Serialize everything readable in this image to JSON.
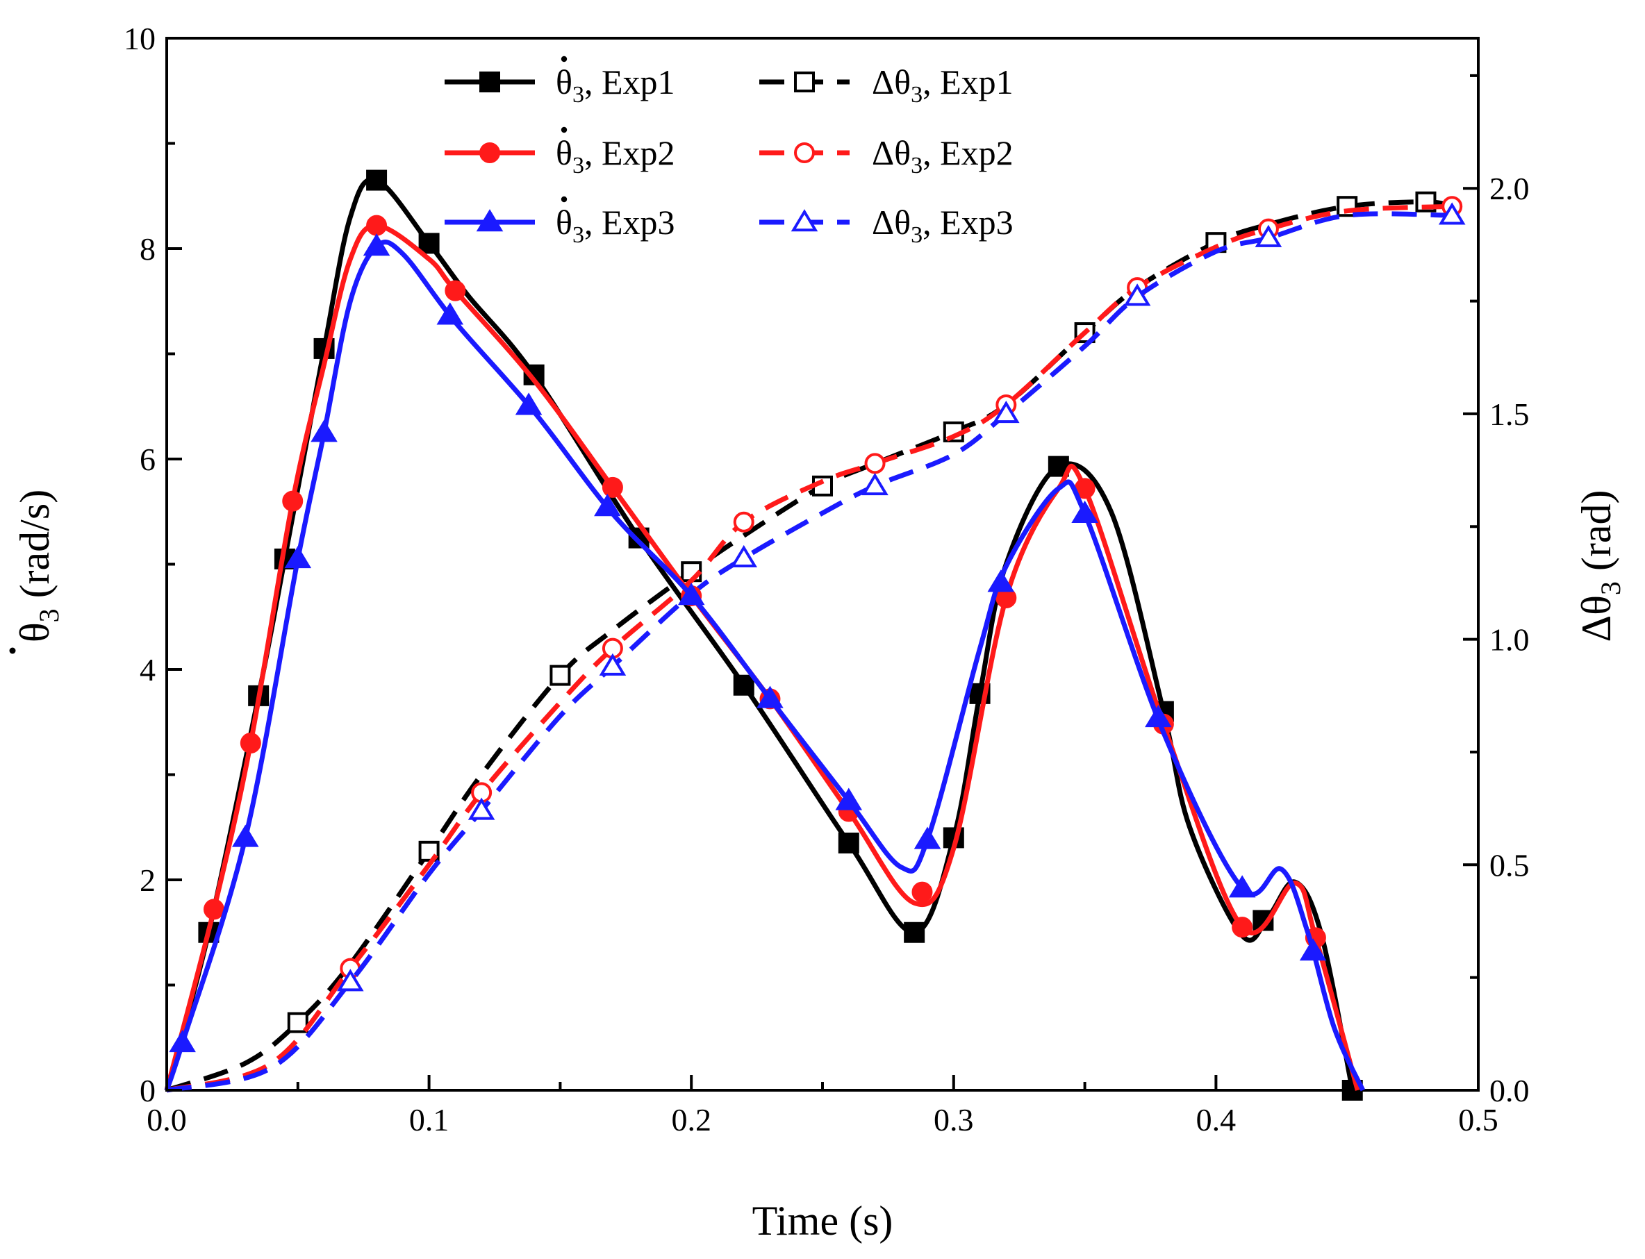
{
  "chart_data": {
    "type": "line",
    "title": "",
    "xlabel": "Time (s)",
    "ylabel_left": "θ̇3 (rad/s)",
    "ylabel_right": "Δθ3 (rad)",
    "xlim": [
      0,
      0.5
    ],
    "ylim_left": [
      0,
      10
    ],
    "ylim_right": [
      0,
      2.333
    ],
    "x_ticks": [
      "0.0",
      "0.1",
      "0.2",
      "0.3",
      "0.4",
      "0.5"
    ],
    "y_left_ticks": [
      "0",
      "2",
      "4",
      "6",
      "8",
      "10"
    ],
    "y_right_ticks": [
      "0.0",
      "0.5",
      "1.0",
      "1.5",
      "2.0"
    ],
    "grid": false,
    "legend_position": "top",
    "series": [
      {
        "name": "θ̇3, Exp1",
        "label_main": "θ",
        "label_sub": "3",
        "label_rest": ", Exp1",
        "label_dot": true,
        "axis": "left",
        "color": "#000000",
        "dash": "solid",
        "marker": "square",
        "marker_fill": "filled",
        "x": [
          0.0,
          0.016,
          0.035,
          0.045,
          0.06,
          0.07,
          0.08,
          0.1,
          0.115,
          0.14,
          0.18,
          0.22,
          0.26,
          0.285,
          0.3,
          0.31,
          0.32,
          0.34,
          0.36,
          0.38,
          0.39,
          0.41,
          0.42,
          0.43,
          0.44,
          0.452
        ],
        "y": [
          0.0,
          1.5,
          3.75,
          5.05,
          7.05,
          8.3,
          8.65,
          8.05,
          7.55,
          6.8,
          5.25,
          3.85,
          2.35,
          1.5,
          2.4,
          3.77,
          5.0,
          5.93,
          5.5,
          3.6,
          2.5,
          1.47,
          1.65,
          1.98,
          1.5,
          0.0
        ],
        "marker_x": [
          0.016,
          0.035,
          0.045,
          0.06,
          0.08,
          0.1,
          0.14,
          0.18,
          0.22,
          0.26,
          0.285,
          0.3,
          0.31,
          0.34,
          0.38,
          0.418,
          0.452
        ]
      },
      {
        "name": "θ̇3, Exp2",
        "label_main": "θ",
        "label_sub": "3",
        "label_rest": ", Exp2",
        "label_dot": true,
        "axis": "left",
        "color": "#ff1a1a",
        "dash": "solid",
        "marker": "circle",
        "marker_fill": "filled",
        "x": [
          0.0,
          0.018,
          0.032,
          0.048,
          0.06,
          0.07,
          0.08,
          0.1,
          0.11,
          0.14,
          0.17,
          0.2,
          0.23,
          0.26,
          0.285,
          0.3,
          0.32,
          0.34,
          0.35,
          0.38,
          0.41,
          0.43,
          0.438,
          0.454
        ],
        "y": [
          0.0,
          1.72,
          3.3,
          5.6,
          6.9,
          7.9,
          8.22,
          7.9,
          7.6,
          6.75,
          5.73,
          4.7,
          3.72,
          2.65,
          1.78,
          2.3,
          4.68,
          5.72,
          5.72,
          3.48,
          1.55,
          1.97,
          1.45,
          0.0
        ],
        "marker_x": [
          0.018,
          0.032,
          0.048,
          0.08,
          0.11,
          0.17,
          0.2,
          0.23,
          0.26,
          0.288,
          0.32,
          0.35,
          0.38,
          0.41,
          0.438
        ]
      },
      {
        "name": "θ̇3, Exp3",
        "label_main": "θ",
        "label_sub": "3",
        "label_rest": ", Exp3",
        "label_dot": true,
        "axis": "left",
        "color": "#1a1aff",
        "dash": "solid",
        "marker": "triangle",
        "marker_fill": "filled",
        "x": [
          0.0,
          0.006,
          0.03,
          0.05,
          0.06,
          0.07,
          0.08,
          0.09,
          0.11,
          0.14,
          0.17,
          0.2,
          0.23,
          0.26,
          0.28,
          0.29,
          0.31,
          0.32,
          0.34,
          0.35,
          0.38,
          0.41,
          0.425,
          0.435,
          0.445,
          0.456
        ],
        "y": [
          0.0,
          0.45,
          2.4,
          5.05,
          6.25,
          7.5,
          8.02,
          7.95,
          7.3,
          6.45,
          5.48,
          4.7,
          3.72,
          2.75,
          2.12,
          2.38,
          4.2,
          4.98,
          5.72,
          5.48,
          3.4,
          1.92,
          2.1,
          1.5,
          0.6,
          0.0
        ],
        "marker_x": [
          0.006,
          0.03,
          0.05,
          0.06,
          0.08,
          0.108,
          0.138,
          0.168,
          0.2,
          0.23,
          0.26,
          0.29,
          0.318,
          0.35,
          0.378,
          0.41,
          0.437
        ]
      },
      {
        "name": "Δθ3, Exp1",
        "label_main": "Δθ",
        "label_sub": "3",
        "label_rest": ", Exp1",
        "label_dot": false,
        "axis": "right",
        "color": "#000000",
        "dash": "dashed",
        "marker": "square",
        "marker_fill": "open",
        "x": [
          0.0,
          0.03,
          0.05,
          0.07,
          0.1,
          0.12,
          0.15,
          0.17,
          0.2,
          0.22,
          0.25,
          0.27,
          0.3,
          0.32,
          0.35,
          0.37,
          0.4,
          0.42,
          0.45,
          0.48,
          0.49
        ],
        "y": [
          0.0,
          0.06,
          0.15,
          0.28,
          0.53,
          0.7,
          0.92,
          1.02,
          1.15,
          1.23,
          1.34,
          1.39,
          1.46,
          1.52,
          1.68,
          1.78,
          1.88,
          1.92,
          1.96,
          1.97,
          1.96
        ],
        "marker_x": [
          0.05,
          0.1,
          0.15,
          0.2,
          0.25,
          0.3,
          0.35,
          0.4,
          0.45,
          0.48
        ]
      },
      {
        "name": "Δθ3, Exp2",
        "label_main": "Δθ",
        "label_sub": "3",
        "label_rest": ", Exp2",
        "label_dot": false,
        "axis": "right",
        "color": "#ff1a1a",
        "dash": "dashed",
        "marker": "circle",
        "marker_fill": "open",
        "x": [
          0.0,
          0.04,
          0.07,
          0.1,
          0.12,
          0.15,
          0.17,
          0.2,
          0.22,
          0.25,
          0.27,
          0.3,
          0.32,
          0.35,
          0.37,
          0.4,
          0.42,
          0.45,
          0.49
        ],
        "y": [
          0.0,
          0.06,
          0.27,
          0.5,
          0.66,
          0.86,
          0.98,
          1.13,
          1.26,
          1.35,
          1.39,
          1.45,
          1.52,
          1.68,
          1.78,
          1.87,
          1.91,
          1.95,
          1.96
        ],
        "marker_x": [
          0.07,
          0.12,
          0.17,
          0.22,
          0.27,
          0.32,
          0.37,
          0.42,
          0.49
        ]
      },
      {
        "name": "Δθ3, Exp3",
        "label_main": "Δθ",
        "label_sub": "3",
        "label_rest": ", Exp3",
        "label_dot": false,
        "axis": "right",
        "color": "#1a1aff",
        "dash": "dashed",
        "marker": "triangle",
        "marker_fill": "open",
        "x": [
          0.0,
          0.04,
          0.07,
          0.1,
          0.12,
          0.15,
          0.17,
          0.2,
          0.22,
          0.25,
          0.27,
          0.3,
          0.32,
          0.35,
          0.37,
          0.4,
          0.42,
          0.45,
          0.49
        ],
        "y": [
          0.0,
          0.05,
          0.24,
          0.48,
          0.62,
          0.83,
          0.94,
          1.1,
          1.18,
          1.28,
          1.34,
          1.41,
          1.5,
          1.65,
          1.76,
          1.86,
          1.89,
          1.94,
          1.94
        ],
        "marker_x": [
          0.07,
          0.12,
          0.17,
          0.22,
          0.27,
          0.32,
          0.37,
          0.42,
          0.49
        ]
      }
    ]
  }
}
